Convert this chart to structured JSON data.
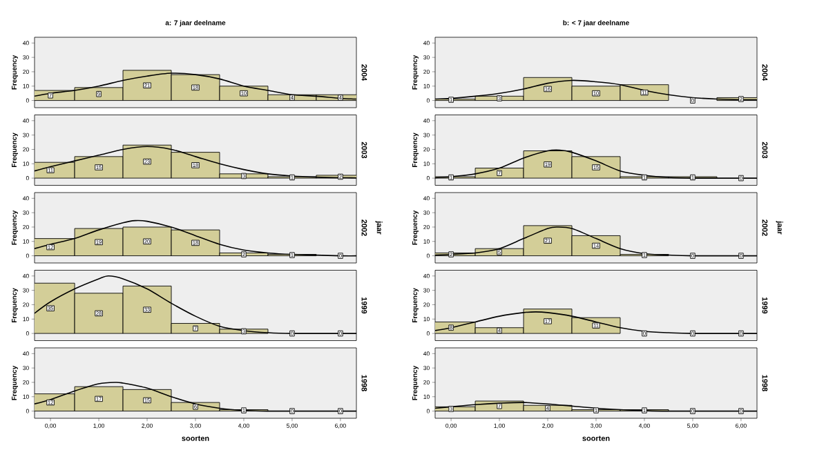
{
  "chart_data": [
    {
      "type": "histogram",
      "title": "a: 7 jaar deelname",
      "ylabel": "Frequency",
      "y2label": "2004",
      "bins": [
        -0.5,
        0.5,
        1.5,
        2.5,
        3.5,
        4.5,
        5.5,
        6.5
      ],
      "xlim": [
        -0.33,
        6.33
      ],
      "ylim": [
        -5,
        44
      ],
      "yticks": [
        0,
        10,
        20,
        30,
        40
      ],
      "tick_labels": "y",
      "series": [
        {
          "color": "#d3ce98",
          "data_labels": true,
          "values": [
            7,
            9,
            21,
            18,
            10,
            4,
            4
          ]
        },
        {
          "type": "line",
          "color": "#000000",
          "x": [
            -0.33,
            0,
            0.5,
            1,
            1.5,
            2,
            2.5,
            3,
            3.5,
            4,
            4.5,
            5,
            5.5,
            6,
            6.33
          ],
          "values": [
            3,
            5,
            7,
            10,
            14,
            17,
            19,
            18,
            15,
            10,
            7,
            4,
            3,
            1.5,
            1
          ]
        }
      ]
    },
    {
      "type": "histogram",
      "title": "b: < 7 jaar deelname",
      "ylabel": "Frequency",
      "y2label": "2004",
      "bins": [
        -0.5,
        0.5,
        1.5,
        2.5,
        3.5,
        4.5,
        5.5,
        6.5
      ],
      "xlim": [
        -0.33,
        6.33
      ],
      "ylim": [
        -5,
        44
      ],
      "yticks": [
        0,
        10,
        20,
        30,
        40
      ],
      "tick_labels": "y",
      "series": [
        {
          "color": "#d3ce98",
          "data_labels": true,
          "values": [
            1,
            3,
            16,
            10,
            11,
            0,
            2
          ]
        },
        {
          "type": "line",
          "color": "#000000",
          "x": [
            -0.33,
            0,
            0.5,
            1,
            1.5,
            2,
            2.5,
            3,
            3.5,
            4,
            4.5,
            5,
            5.5,
            6,
            6.33
          ],
          "values": [
            1,
            1.5,
            3,
            5,
            8,
            12,
            14,
            13,
            11,
            7,
            4,
            2,
            1,
            0.5,
            0.5
          ]
        }
      ]
    },
    {
      "type": "histogram",
      "ylabel": "Frequency",
      "y2label": "2003",
      "bins": [
        -0.5,
        0.5,
        1.5,
        2.5,
        3.5,
        4.5,
        5.5,
        6.5
      ],
      "xlim": [
        -0.33,
        6.33
      ],
      "ylim": [
        -5,
        44
      ],
      "yticks": [
        0,
        10,
        20,
        30,
        40
      ],
      "tick_labels": "y",
      "series": [
        {
          "color": "#d3ce98",
          "data_labels": true,
          "values": [
            11,
            15,
            23,
            18,
            3,
            1,
            2
          ]
        },
        {
          "type": "line",
          "color": "#000000",
          "x": [
            -0.33,
            0,
            0.5,
            1,
            1.5,
            2,
            2.5,
            3,
            3.5,
            4,
            4.5,
            5,
            5.5,
            6,
            6.33
          ],
          "values": [
            5,
            8,
            12,
            16,
            20,
            22,
            20,
            15,
            10,
            6,
            3,
            1.5,
            0.7,
            0.3,
            0.2
          ]
        }
      ]
    },
    {
      "type": "histogram",
      "ylabel": "Frequency",
      "y2label": "2003",
      "bins": [
        -0.5,
        0.5,
        1.5,
        2.5,
        3.5,
        4.5,
        5.5,
        6.5
      ],
      "xlim": [
        -0.33,
        6.33
      ],
      "ylim": [
        -5,
        44
      ],
      "yticks": [
        0,
        10,
        20,
        30,
        40
      ],
      "tick_labels": "y",
      "series": [
        {
          "color": "#d3ce98",
          "data_labels": true,
          "values": [
            1,
            7,
            19,
            15,
            1,
            1,
            0
          ]
        },
        {
          "type": "line",
          "color": "#000000",
          "x": [
            -0.33,
            0,
            0.5,
            1,
            1.5,
            2,
            2.25,
            2.5,
            3,
            3.5,
            4,
            4.5,
            5,
            6.33
          ],
          "values": [
            0.3,
            1,
            3,
            7,
            14,
            19,
            19.5,
            18,
            12,
            5,
            2,
            0.5,
            0,
            0
          ]
        }
      ]
    },
    {
      "type": "histogram",
      "ylabel": "Frequency",
      "y2label": "2002",
      "annotations": [
        "jaar"
      ],
      "bins": [
        -0.5,
        0.5,
        1.5,
        2.5,
        3.5,
        4.5,
        5.5,
        6.5
      ],
      "xlim": [
        -0.33,
        6.33
      ],
      "ylim": [
        -5,
        44
      ],
      "yticks": [
        0,
        10,
        20,
        30,
        40
      ],
      "tick_labels": "y",
      "series": [
        {
          "color": "#d3ce98",
          "data_labels": true,
          "values": [
            12,
            19,
            20,
            18,
            2,
            1,
            0
          ]
        },
        {
          "type": "line",
          "color": "#000000",
          "x": [
            -0.33,
            0,
            0.5,
            1,
            1.5,
            1.75,
            2,
            2.5,
            3,
            3.5,
            4,
            4.5,
            5,
            6,
            6.33
          ],
          "values": [
            5,
            8,
            12,
            18,
            23,
            24.5,
            24,
            20,
            14,
            8,
            4,
            2,
            1,
            0,
            0
          ]
        }
      ]
    },
    {
      "type": "histogram",
      "ylabel": "Frequency",
      "y2label": "2002",
      "annotations": [
        "jaar"
      ],
      "bins": [
        -0.5,
        0.5,
        1.5,
        2.5,
        3.5,
        4.5,
        5.5,
        6.5
      ],
      "xlim": [
        -0.33,
        6.33
      ],
      "ylim": [
        -5,
        44
      ],
      "yticks": [
        0,
        10,
        20,
        30,
        40
      ],
      "tick_labels": "y",
      "series": [
        {
          "color": "#d3ce98",
          "data_labels": true,
          "values": [
            2,
            5,
            21,
            14,
            1,
            0,
            0
          ]
        },
        {
          "type": "line",
          "color": "#000000",
          "x": [
            -0.33,
            0,
            0.5,
            1,
            1.5,
            2,
            2.2,
            2.5,
            3,
            3.5,
            4,
            4.5,
            5,
            6.33
          ],
          "values": [
            0.5,
            1,
            2,
            5,
            12,
            19,
            20,
            19,
            12,
            5,
            1.5,
            0.5,
            0,
            0
          ]
        }
      ]
    },
    {
      "type": "histogram",
      "ylabel": "Frequency",
      "y2label": "1999",
      "bins": [
        -0.5,
        0.5,
        1.5,
        2.5,
        3.5,
        4.5,
        5.5,
        6.5
      ],
      "xlim": [
        -0.33,
        6.33
      ],
      "ylim": [
        -5,
        44
      ],
      "yticks": [
        0,
        10,
        20,
        30,
        40
      ],
      "tick_labels": "y",
      "series": [
        {
          "color": "#d3ce98",
          "data_labels": true,
          "values": [
            35,
            28,
            33,
            7,
            3,
            0,
            0
          ]
        },
        {
          "type": "line",
          "color": "#000000",
          "x": [
            -0.33,
            0,
            0.5,
            1,
            1.2,
            1.5,
            2,
            2.5,
            3,
            3.5,
            4,
            4.5,
            5,
            6.33
          ],
          "values": [
            14,
            22,
            31,
            38,
            40,
            38,
            31,
            21,
            12,
            5,
            2,
            0.5,
            0,
            0
          ]
        }
      ]
    },
    {
      "type": "histogram",
      "ylabel": "Frequency",
      "y2label": "1999",
      "bins": [
        -0.5,
        0.5,
        1.5,
        2.5,
        3.5,
        4.5,
        5.5,
        6.5
      ],
      "xlim": [
        -0.33,
        6.33
      ],
      "ylim": [
        -5,
        44
      ],
      "yticks": [
        0,
        10,
        20,
        30,
        40
      ],
      "tick_labels": "y",
      "series": [
        {
          "color": "#d3ce98",
          "data_labels": true,
          "values": [
            8,
            4,
            17,
            11,
            0,
            0,
            0
          ]
        },
        {
          "type": "line",
          "color": "#000000",
          "x": [
            -0.33,
            0,
            0.5,
            1,
            1.5,
            1.75,
            2,
            2.5,
            3,
            3.5,
            4,
            4.5,
            5,
            6.33
          ],
          "values": [
            2,
            4,
            8,
            12,
            14.5,
            15,
            14.5,
            12,
            8,
            4,
            1.5,
            0.5,
            0,
            0
          ]
        }
      ]
    },
    {
      "type": "histogram",
      "ylabel": "Frequency",
      "y2label": "1998",
      "xlabel": "soorten",
      "bins": [
        -0.5,
        0.5,
        1.5,
        2.5,
        3.5,
        4.5,
        5.5,
        6.5
      ],
      "xlim": [
        -0.33,
        6.33
      ],
      "ylim": [
        -5,
        44
      ],
      "xticks": [
        {
          "value": 0,
          "label": "0,00"
        },
        {
          "value": 1,
          "label": "1,00"
        },
        {
          "value": 2,
          "label": "2,00"
        },
        {
          "value": 3,
          "label": "3,00"
        },
        {
          "value": 4,
          "label": "4,00"
        },
        {
          "value": 5,
          "label": "5,00"
        },
        {
          "value": 6,
          "label": "6,00"
        }
      ],
      "yticks": [
        0,
        10,
        20,
        30,
        40
      ],
      "series": [
        {
          "color": "#d3ce98",
          "data_labels": true,
          "values": [
            12,
            17,
            15,
            6,
            1,
            0,
            0
          ]
        },
        {
          "type": "line",
          "color": "#000000",
          "x": [
            -0.33,
            0,
            0.5,
            1,
            1.35,
            1.5,
            2,
            2.5,
            3,
            3.5,
            4,
            4.5,
            6.33
          ],
          "values": [
            5,
            8,
            14,
            19,
            20,
            19.5,
            16,
            10,
            5,
            2,
            0.5,
            0,
            0
          ]
        }
      ]
    },
    {
      "type": "histogram",
      "ylabel": "Frequency",
      "y2label": "1998",
      "xlabel": "soorten",
      "bins": [
        -0.5,
        0.5,
        1.5,
        2.5,
        3.5,
        4.5,
        5.5,
        6.5
      ],
      "xlim": [
        -0.33,
        6.33
      ],
      "ylim": [
        -5,
        44
      ],
      "xticks": [
        {
          "value": 0,
          "label": "0,00"
        },
        {
          "value": 1,
          "label": "1,00"
        },
        {
          "value": 2,
          "label": "2,00"
        },
        {
          "value": 3,
          "label": "3,00"
        },
        {
          "value": 4,
          "label": "4,00"
        },
        {
          "value": 5,
          "label": "5,00"
        },
        {
          "value": 6,
          "label": "6,00"
        }
      ],
      "yticks": [
        0,
        10,
        20,
        30,
        40
      ],
      "series": [
        {
          "color": "#d3ce98",
          "data_labels": true,
          "values": [
            3,
            7,
            4,
            1,
            1,
            0,
            0
          ]
        },
        {
          "type": "line",
          "color": "#000000",
          "x": [
            -0.33,
            0,
            0.5,
            1,
            1.5,
            2,
            2.5,
            3,
            3.5,
            4,
            4.5,
            6.33
          ],
          "values": [
            2,
            3,
            4.5,
            5.5,
            6,
            5,
            3.5,
            2,
            1,
            0.3,
            0,
            0
          ]
        }
      ]
    }
  ]
}
